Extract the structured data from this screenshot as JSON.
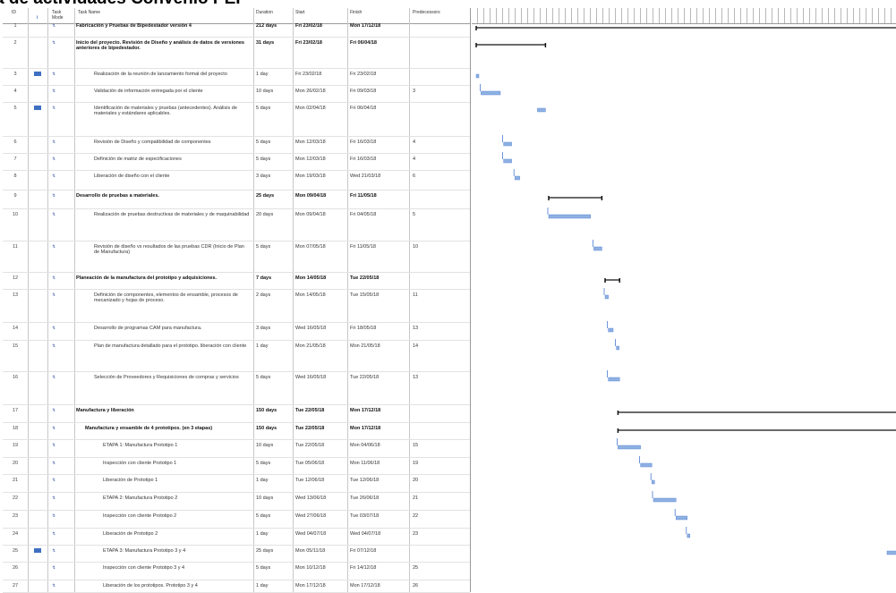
{
  "title": "a de actividades Convenio PEP",
  "columns": {
    "id": "ID",
    "info": "i",
    "mode": "Task Mode",
    "name": "Task Name",
    "duration": "Duration",
    "start": "Start",
    "finish": "Finish",
    "predecessors": "Predecessors"
  },
  "task_mode_glyph": "↯",
  "tasks": [
    {
      "id": "1",
      "name": "Fabricación y Pruebas de Bipedestador versión 4",
      "duration": "212 days",
      "start": "Fri 23/02/18",
      "finish": "Mon 17/12/18",
      "pred": "",
      "bold": true
    },
    {
      "id": "2",
      "name": "Inicio del proyecto. Revisión de Diseño y análisis de datos de versiones anteriores de bipedestador.",
      "duration": "31 days",
      "start": "Fri 23/02/18",
      "finish": "Fri 06/04/18",
      "pred": "",
      "bold": true
    },
    {
      "id": "3",
      "name": "Realización de la reunión de lanzamiento formal del proyecto",
      "duration": "1 day",
      "start": "Fri 23/02/18",
      "finish": "Fri 23/02/18",
      "pred": "",
      "bold": false
    },
    {
      "id": "4",
      "name": "Validación de información entregada por el cliente",
      "duration": "10 days",
      "start": "Mon 26/02/18",
      "finish": "Fri 09/03/18",
      "pred": "3",
      "bold": false
    },
    {
      "id": "5",
      "name": "Identificación de materiales y pruebas (antecedentes). Análisis de materiales y estándares aplicables.",
      "duration": "5 days",
      "start": "Mon 02/04/18",
      "finish": "Fri 06/04/18",
      "pred": "",
      "bold": false
    },
    {
      "id": "6",
      "name": "Revisión de Diseño y compatibilidad de componentes",
      "duration": "5 days",
      "start": "Mon 12/03/18",
      "finish": "Fri 16/03/18",
      "pred": "4",
      "bold": false
    },
    {
      "id": "7",
      "name": "Definición de matriz de especificaciones",
      "duration": "5 days",
      "start": "Mon 12/03/18",
      "finish": "Fri 16/03/18",
      "pred": "4",
      "bold": false
    },
    {
      "id": "8",
      "name": "Liberación de diseño con el cliente",
      "duration": "3 days",
      "start": "Mon 19/03/18",
      "finish": "Wed 21/03/18",
      "pred": "6",
      "bold": false
    },
    {
      "id": "9",
      "name": "Desarrollo de pruebas a materiales.",
      "duration": "25 days",
      "start": "Mon 09/04/18",
      "finish": "Fri 11/05/18",
      "pred": "",
      "bold": true
    },
    {
      "id": "10",
      "name": "Realización de pruebas destructivas de materiales y de maquinabilidad",
      "duration": "20 days",
      "start": "Mon 09/04/18",
      "finish": "Fri 04/05/18",
      "pred": "5",
      "bold": false
    },
    {
      "id": "11",
      "name": "Revisión de diseño vs resultados de las pruebas CDR (Inicio de Plan de Manufactura)",
      "duration": "5 days",
      "start": "Mon 07/05/18",
      "finish": "Fri 11/05/18",
      "pred": "10",
      "bold": false
    },
    {
      "id": "12",
      "name": "Planeación de la manufactura del prototipo y adquisiciones.",
      "duration": "7 days",
      "start": "Mon 14/05/18",
      "finish": "Tue 22/05/18",
      "pred": "",
      "bold": true
    },
    {
      "id": "13",
      "name": "Definición de componentes, elementos de ensamble, procesos de mecanizado y hojas de proceso.",
      "duration": "2 days",
      "start": "Mon 14/05/18",
      "finish": "Tue 15/05/18",
      "pred": "11",
      "bold": false
    },
    {
      "id": "14",
      "name": "Desarrollo de programas CAM para manufactura.",
      "duration": "3 days",
      "start": "Wed 16/05/18",
      "finish": "Fri 18/05/18",
      "pred": "13",
      "bold": false
    },
    {
      "id": "15",
      "name": "Plan de manufactura detallado para el prototipo. liberación con cliente",
      "duration": "1 day",
      "start": "Mon 21/05/18",
      "finish": "Mon 21/05/18",
      "pred": "14",
      "bold": false
    },
    {
      "id": "16",
      "name": "Selección de Proveedores y Requisiciones de compras y servicios",
      "duration": "5 days",
      "start": "Wed 16/05/18",
      "finish": "Tue 22/05/18",
      "pred": "13",
      "bold": false
    },
    {
      "id": "17",
      "name": "Manufactura y liberación",
      "duration": "150 days",
      "start": "Tue 22/05/18",
      "finish": "Mon 17/12/18",
      "pred": "",
      "bold": true
    },
    {
      "id": "18",
      "name": "Manufactura y ensamble de 4 prototipos. (en 3 etapas)",
      "duration": "150 days",
      "start": "Tue 22/05/18",
      "finish": "Mon 17/12/18",
      "pred": "",
      "bold": true
    },
    {
      "id": "19",
      "name": "ETAPA 1: Manufactura Prototipo 1",
      "duration": "10 days",
      "start": "Tue 22/05/18",
      "finish": "Mon 04/06/18",
      "pred": "15",
      "bold": false
    },
    {
      "id": "20",
      "name": "Inspección con cliente Prototipo 1",
      "duration": "5 days",
      "start": "Tue 05/06/18",
      "finish": "Mon 11/06/18",
      "pred": "19",
      "bold": false
    },
    {
      "id": "21",
      "name": "Liberación de Prototipo 1",
      "duration": "1 day",
      "start": "Tue 12/06/18",
      "finish": "Tue 12/06/18",
      "pred": "20",
      "bold": false
    },
    {
      "id": "22",
      "name": "ETAPA 2: Manufactura Prototipo 2",
      "duration": "10 days",
      "start": "Wed 13/06/18",
      "finish": "Tue 26/06/18",
      "pred": "21",
      "bold": false
    },
    {
      "id": "23",
      "name": "Inspección con cliente Prototipo 2",
      "duration": "5 days",
      "start": "Wed 27/06/18",
      "finish": "Tue 03/07/18",
      "pred": "22",
      "bold": false
    },
    {
      "id": "24",
      "name": "Liberación de Prototipo 2",
      "duration": "1 day",
      "start": "Wed 04/07/18",
      "finish": "Wed 04/07/18",
      "pred": "23",
      "bold": false
    },
    {
      "id": "25",
      "name": "ETAPA 3: Manufactura Prototipo 3 y 4",
      "duration": "25 days",
      "start": "Mon 05/11/18",
      "finish": "Fri 07/12/18",
      "pred": "",
      "bold": false
    },
    {
      "id": "26",
      "name": "Inspección con cliente Prototipo 3 y 4",
      "duration": "5 days",
      "start": "Mon 10/12/18",
      "finish": "Fri 14/12/18",
      "pred": "25",
      "bold": false
    },
    {
      "id": "27",
      "name": "Liberación de los prototipos. Prototipo 3 y 4",
      "duration": "1 day",
      "start": "Mon 17/12/18",
      "finish": "Mon 17/12/18",
      "pred": "26",
      "bold": false
    }
  ],
  "colors": {
    "bar": "#8fb1e3",
    "bar_edge": "#4a7bd0",
    "summary": "#111111",
    "grid": "#c8c8c8"
  }
}
